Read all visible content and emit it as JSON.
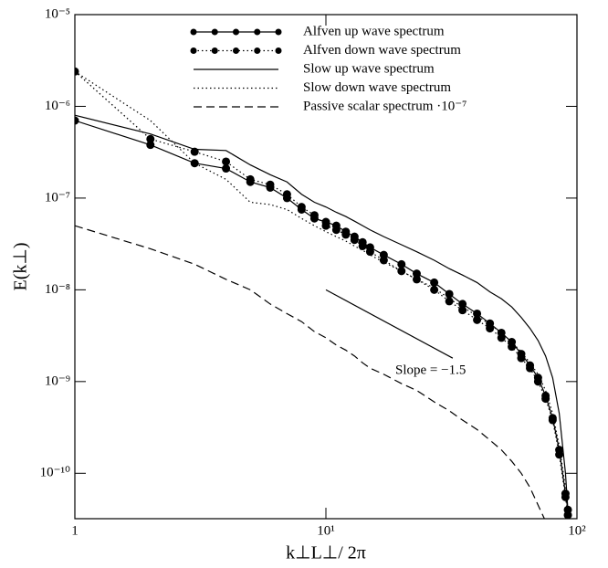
{
  "chart_data": {
    "type": "line",
    "xlabel": "k⊥L⊥/ 2π",
    "ylabel": "E(k⊥)",
    "log_x": true,
    "log_y": true,
    "xlim": [
      1,
      100
    ],
    "ylim": [
      3.2e-11,
      1e-05
    ],
    "xticks": [
      1,
      {
        "value": 10,
        "label": "10¹"
      },
      {
        "value": 100,
        "label": "10²"
      }
    ],
    "yticks": [
      {
        "value": 1e-05,
        "label": "10⁻⁵"
      },
      {
        "value": 1e-06,
        "label": "10⁻⁶"
      },
      {
        "value": 1e-07,
        "label": "10⁻⁷"
      },
      {
        "value": 1e-08,
        "label": "10⁻⁸"
      },
      {
        "value": 1e-09,
        "label": "10⁻⁹"
      },
      {
        "value": 1e-10,
        "label": "10⁻¹⁰"
      }
    ],
    "legend": "top-right",
    "x": [
      1,
      2,
      3,
      4,
      5,
      6,
      7,
      8,
      9,
      10,
      11,
      12,
      13,
      14,
      15,
      17,
      20,
      23,
      27,
      31,
      35,
      40,
      45,
      50,
      55,
      60,
      65,
      70,
      75,
      80,
      85,
      90,
      92
    ],
    "series": [
      {
        "name": "Alfven up wave spectrum",
        "color": "#000000",
        "line_style": "solid",
        "markers": true,
        "values": [
          7e-07,
          3.8e-07,
          2.4e-07,
          2.1e-07,
          1.5e-07,
          1.3e-07,
          1e-07,
          7.5e-08,
          6e-08,
          5.5e-08,
          5e-08,
          4.3e-08,
          3.8e-08,
          3.3e-08,
          2.9e-08,
          2.4e-08,
          1.9e-08,
          1.5e-08,
          1.2e-08,
          9e-09,
          7e-09,
          5.5e-09,
          4.3e-09,
          3.4e-09,
          2.7e-09,
          2e-09,
          1.5e-09,
          1.1e-09,
          7e-10,
          4e-10,
          1.8e-10,
          6e-11,
          4e-11
        ]
      },
      {
        "name": "Alfven down wave spectrum",
        "color": "#000000",
        "line_style": "dotted",
        "markers": true,
        "values": [
          2.4e-06,
          4.4e-07,
          3.2e-07,
          2.5e-07,
          1.6e-07,
          1.4e-07,
          1.1e-07,
          8e-08,
          6.5e-08,
          5e-08,
          4.5e-08,
          4e-08,
          3.5e-08,
          3e-08,
          2.6e-08,
          2.1e-08,
          1.6e-08,
          1.3e-08,
          1e-08,
          7.5e-09,
          6e-09,
          4.7e-09,
          3.8e-09,
          3e-09,
          2.4e-09,
          1.8e-09,
          1.4e-09,
          1e-09,
          6.5e-10,
          3.8e-10,
          1.6e-10,
          5.5e-11,
          3.5e-11
        ]
      },
      {
        "name": "Slow up wave spectrum",
        "color": "#000000",
        "line_style": "solid",
        "markers": false,
        "values": [
          8e-07,
          5e-07,
          3.4e-07,
          3.3e-07,
          2.3e-07,
          1.8e-07,
          1.5e-07,
          1.1e-07,
          9e-08,
          8e-08,
          7e-08,
          6.3e-08,
          5.6e-08,
          5e-08,
          4.5e-08,
          3.8e-08,
          3.1e-08,
          2.6e-08,
          2.1e-08,
          1.7e-08,
          1.45e-08,
          1.2e-08,
          9.5e-09,
          8e-09,
          6.5e-09,
          5e-09,
          3.8e-09,
          2.8e-09,
          1.9e-09,
          1.1e-09,
          4.5e-10,
          1e-10,
          4e-11
        ]
      },
      {
        "name": "Slow down wave spectrum",
        "color": "#000000",
        "line_style": "dotted",
        "markers": false,
        "values": [
          2.4e-06,
          7e-07,
          2.4e-07,
          1.6e-07,
          9e-08,
          8.5e-08,
          7.5e-08,
          6e-08,
          5e-08,
          4.3e-08,
          3.8e-08,
          3.4e-08,
          3e-08,
          2.7e-08,
          2.4e-08,
          2e-08,
          1.6e-08,
          1.3e-08,
          1.05e-08,
          8e-09,
          6.5e-09,
          5.2e-09,
          4.2e-09,
          3.4e-09,
          2.7e-09,
          2.1e-09,
          1.6e-09,
          1.2e-09,
          8e-10,
          4.5e-10,
          2e-10,
          7e-11,
          4e-11
        ]
      },
      {
        "name": "Passive scalar spectrum ·10⁻⁷",
        "color": "#000000",
        "line_style": "dashed",
        "markers": false,
        "values": [
          5e-08,
          2.8e-08,
          1.9e-08,
          1.3e-08,
          1e-08,
          7e-09,
          5.5e-09,
          4.5e-09,
          3.5e-09,
          3e-09,
          2.5e-09,
          2.2e-09,
          1.9e-09,
          1.6e-09,
          1.4e-09,
          1.2e-09,
          9.5e-10,
          8e-10,
          6e-10,
          4.8e-10,
          3.8e-10,
          3e-10,
          2.3e-10,
          1.8e-10,
          1.35e-10,
          1e-10,
          7e-11,
          4.5e-11,
          3e-11,
          null,
          null,
          null,
          null
        ]
      }
    ],
    "annotation": {
      "text": "Slope = −1.5",
      "x": [
        10,
        32
      ],
      "y": [
        1e-08,
        1.8e-09
      ]
    }
  }
}
